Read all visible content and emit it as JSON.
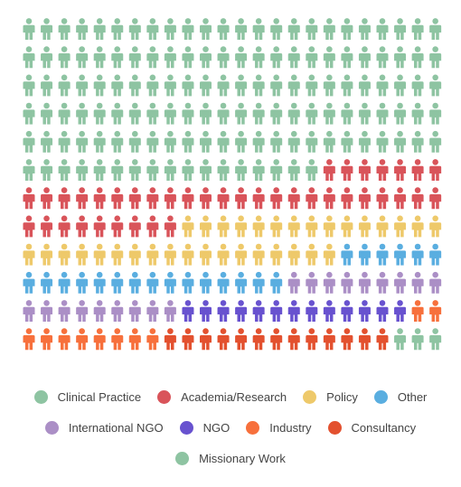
{
  "chart_data": {
    "type": "pictograph",
    "unit": "person-icon",
    "rows": 12,
    "columns": 24,
    "categories": [
      {
        "name": "Clinical Practice",
        "count": 137,
        "color": "#8ec4a2"
      },
      {
        "name": "Academia/Research",
        "count": 40,
        "color": "#d9545a"
      },
      {
        "name": "Policy",
        "count": 33,
        "color": "#eec96a"
      },
      {
        "name": "Other",
        "count": 21,
        "color": "#5aaee0"
      },
      {
        "name": "International NGO",
        "count": 18,
        "color": "#ab8fc6"
      },
      {
        "name": "NGO",
        "count": 13,
        "color": "#6852cf"
      },
      {
        "name": "Industry",
        "count": 10,
        "color": "#f7703c"
      },
      {
        "name": "Consultancy",
        "count": 13,
        "color": "#e3512f"
      },
      {
        "name": "Missionary Work",
        "count": 3,
        "color": "#8ec4a2"
      }
    ]
  }
}
